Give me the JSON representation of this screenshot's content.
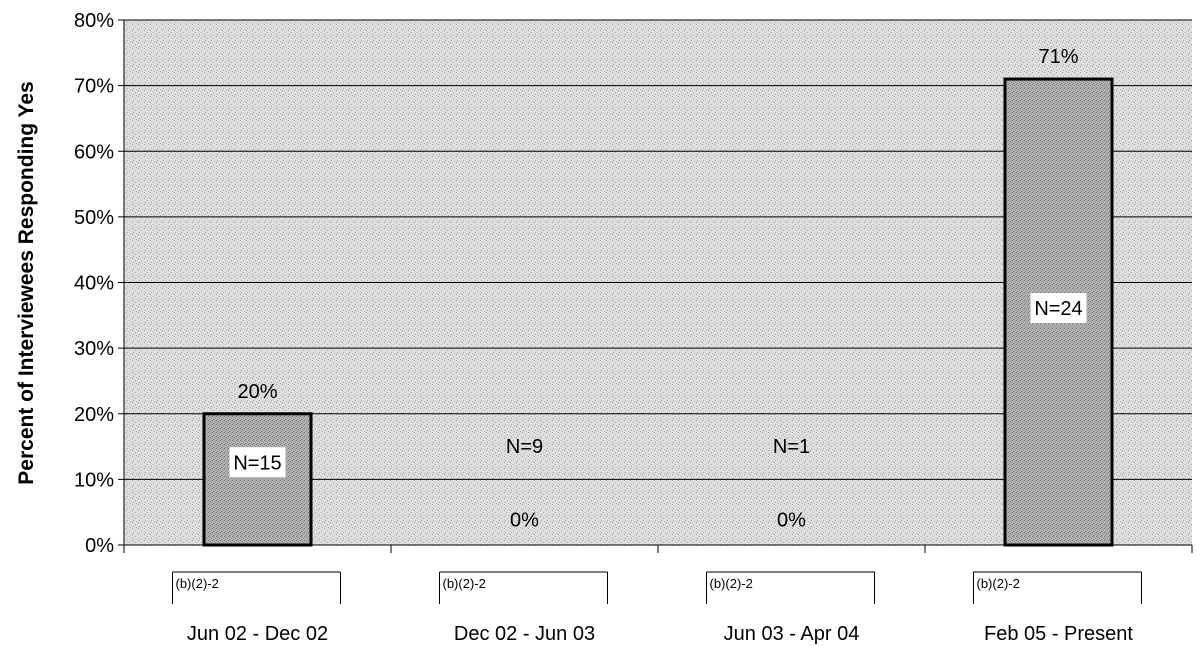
{
  "chart_data": {
    "type": "bar",
    "title": "",
    "xlabel": "",
    "ylabel": "Percent of Interviewees Responding Yes",
    "ylim": [
      0,
      80
    ],
    "yticks": [
      "0%",
      "10%",
      "20%",
      "30%",
      "40%",
      "50%",
      "60%",
      "70%",
      "80%"
    ],
    "ytick_values": [
      0,
      10,
      20,
      30,
      40,
      50,
      60,
      70,
      80
    ],
    "grid": true,
    "categories": [
      "Jun 02 - Dec 02",
      "Dec 02 - Jun 03",
      "Jun 03 - Apr 04",
      "Feb 05 - Present"
    ],
    "values": [
      20,
      0,
      0,
      71
    ],
    "value_labels": [
      "20%",
      "0%",
      "0%",
      "71%"
    ],
    "n_labels": [
      "N=15",
      "N=9",
      "N=1",
      "N=24"
    ],
    "redaction_labels": [
      "(b)(2)-2",
      "(b)(2)-2",
      "(b)(2)-2",
      "(b)(2)-2"
    ],
    "colors": {
      "plot_background": "#d9d9d9",
      "bar_fill": "#a6a6a6",
      "bar_stroke": "#000000",
      "gridline": "#000000"
    }
  }
}
